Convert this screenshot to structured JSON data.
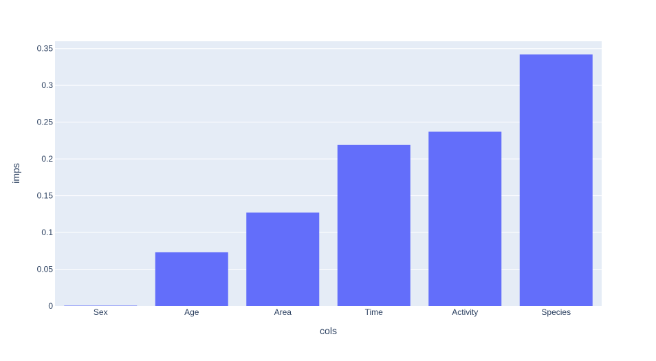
{
  "chart_data": {
    "type": "bar",
    "title": "",
    "xlabel": "cols",
    "ylabel": "imps",
    "categories": [
      "Sex",
      "Age",
      "Area",
      "Time",
      "Activity",
      "Species"
    ],
    "values": [
      0.0005,
      0.073,
      0.127,
      0.219,
      0.237,
      0.342
    ],
    "ylim": [
      0,
      0.36
    ],
    "yticks": [
      0,
      0.05,
      0.1,
      0.15,
      0.2,
      0.25,
      0.3,
      0.35
    ],
    "ytick_labels": [
      "0",
      "0.05",
      "0.1",
      "0.15",
      "0.2",
      "0.25",
      "0.3",
      "0.35"
    ],
    "grid": true,
    "colors": {
      "bar": "#636efa",
      "plot_bg": "#e5ecf6",
      "grid": "#ffffff",
      "text": "#2a3f5f"
    }
  }
}
